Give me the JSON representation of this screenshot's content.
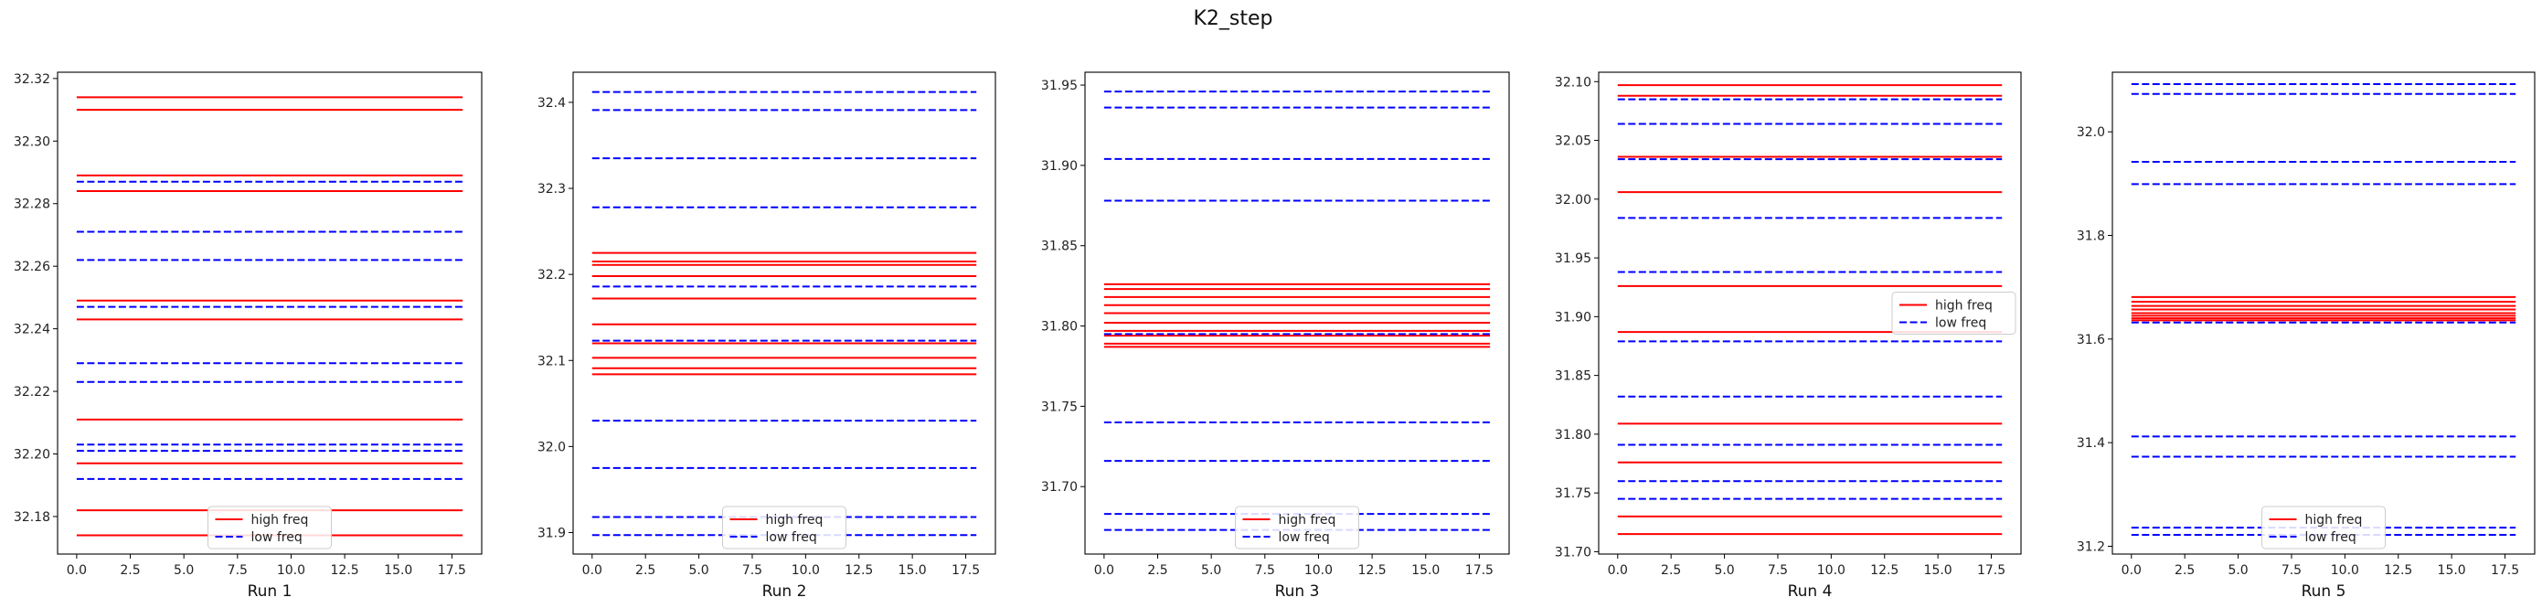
{
  "figure": {
    "title": "K2_step"
  },
  "legend": {
    "high_label": "high freq",
    "low_label": "low freq",
    "high_color": "#ff0000",
    "low_color": "#0000ff"
  },
  "chart_data": [
    {
      "type": "line",
      "xlabel": "Run 1",
      "xlim": [
        0,
        18
      ],
      "ylim": [
        32.168,
        32.322
      ],
      "xticks": [
        0,
        2.5,
        5,
        7.5,
        10,
        12.5,
        15,
        17.5
      ],
      "yticks": [
        32.18,
        32.2,
        32.22,
        32.24,
        32.26,
        32.28,
        32.3,
        32.32
      ],
      "ytick_decimals": 2,
      "legend_loc": "lower center",
      "series": [
        {
          "name": "high freq",
          "style": "solid",
          "levels": [
            32.314,
            32.31,
            32.289,
            32.284,
            32.249,
            32.243,
            32.211,
            32.197,
            32.182,
            32.174
          ]
        },
        {
          "name": "low freq",
          "style": "dashed",
          "levels": [
            32.287,
            32.271,
            32.262,
            32.247,
            32.229,
            32.223,
            32.203,
            32.201,
            32.192
          ]
        }
      ]
    },
    {
      "type": "line",
      "xlabel": "Run 2",
      "xlim": [
        0,
        18
      ],
      "ylim": [
        31.875,
        32.435
      ],
      "xticks": [
        0,
        2.5,
        5,
        7.5,
        10,
        12.5,
        15,
        17.5
      ],
      "yticks": [
        31.9,
        32.0,
        32.1,
        32.2,
        32.3,
        32.4
      ],
      "ytick_decimals": 1,
      "legend_loc": "lower center",
      "series": [
        {
          "name": "high freq",
          "style": "solid",
          "levels": [
            32.225,
            32.215,
            32.211,
            32.198,
            32.172,
            32.142,
            32.12,
            32.103,
            32.091,
            32.084
          ]
        },
        {
          "name": "low freq",
          "style": "dashed",
          "levels": [
            32.412,
            32.391,
            32.335,
            32.278,
            32.186,
            32.123,
            32.03,
            31.975,
            31.918,
            31.897
          ]
        }
      ]
    },
    {
      "type": "line",
      "xlabel": "Run 3",
      "xlim": [
        0,
        18
      ],
      "ylim": [
        31.658,
        31.958
      ],
      "xticks": [
        0,
        2.5,
        5,
        7.5,
        10,
        12.5,
        15,
        17.5
      ],
      "yticks": [
        31.7,
        31.75,
        31.8,
        31.85,
        31.9,
        31.95
      ],
      "ytick_decimals": 2,
      "legend_loc": "lower center",
      "series": [
        {
          "name": "high freq",
          "style": "solid",
          "levels": [
            31.826,
            31.823,
            31.818,
            31.813,
            31.808,
            31.802,
            31.797,
            31.794,
            31.789,
            31.787
          ]
        },
        {
          "name": "low freq",
          "style": "dashed",
          "levels": [
            31.946,
            31.936,
            31.904,
            31.878,
            31.795,
            31.74,
            31.716,
            31.683,
            31.673
          ]
        }
      ]
    },
    {
      "type": "line",
      "xlabel": "Run 4",
      "xlim": [
        0,
        18
      ],
      "ylim": [
        31.698,
        32.108
      ],
      "xticks": [
        0,
        2.5,
        5,
        7.5,
        10,
        12.5,
        15,
        17.5
      ],
      "yticks": [
        31.7,
        31.75,
        31.8,
        31.85,
        31.9,
        31.95,
        32.0,
        32.05,
        32.1
      ],
      "ytick_decimals": 2,
      "legend_loc": "center right",
      "series": [
        {
          "name": "high freq",
          "style": "solid",
          "levels": [
            32.097,
            32.088,
            32.036,
            32.006,
            31.926,
            31.887,
            31.809,
            31.776,
            31.73,
            31.715
          ]
        },
        {
          "name": "low freq",
          "style": "dashed",
          "levels": [
            32.085,
            32.064,
            32.034,
            31.984,
            31.938,
            31.879,
            31.832,
            31.791,
            31.76,
            31.745
          ]
        }
      ]
    },
    {
      "type": "line",
      "xlabel": "Run 5",
      "xlim": [
        0,
        18
      ],
      "ylim": [
        31.185,
        32.115
      ],
      "xticks": [
        0,
        2.5,
        5,
        7.5,
        10,
        12.5,
        15,
        17.5
      ],
      "yticks": [
        31.2,
        31.4,
        31.6,
        31.8,
        32.0
      ],
      "ytick_decimals": 1,
      "legend_loc": "lower center",
      "series": [
        {
          "name": "high freq",
          "style": "solid",
          "levels": [
            31.681,
            31.672,
            31.664,
            31.657,
            31.65,
            31.645,
            31.64,
            31.636
          ]
        },
        {
          "name": "low freq",
          "style": "dashed",
          "levels": [
            32.092,
            32.073,
            31.942,
            31.899,
            31.632,
            31.412,
            31.373,
            31.236,
            31.222
          ]
        }
      ]
    }
  ]
}
